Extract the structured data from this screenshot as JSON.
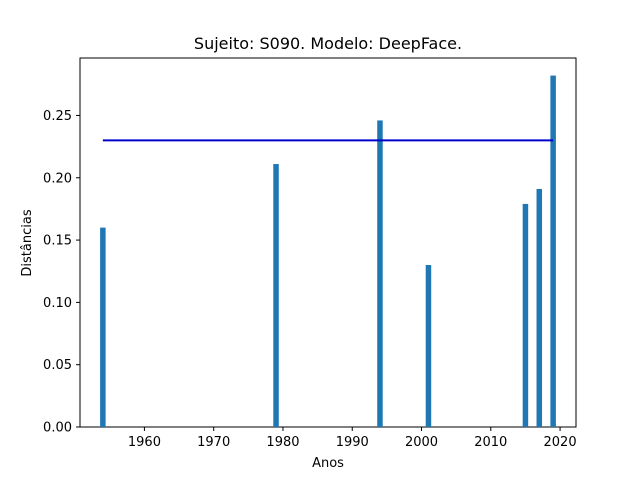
{
  "chart_data": {
    "type": "bar",
    "title": "Sujeito: S090. Modelo: DeepFace.",
    "xlabel": "Anos",
    "ylabel": "Distâncias",
    "x": [
      1954,
      1979,
      1994,
      2001,
      2015,
      2017,
      2019
    ],
    "values": [
      0.16,
      0.211,
      0.246,
      0.13,
      0.179,
      0.191,
      0.282
    ],
    "bar_color": "#1f77b4",
    "xlim": [
      1950.7,
      2022.3
    ],
    "ylim": [
      0,
      0.2961
    ],
    "xticks": [
      1960,
      1970,
      1980,
      1990,
      2000,
      2010,
      2020
    ],
    "yticks": [
      0.0,
      0.05,
      0.1,
      0.15,
      0.2,
      0.25
    ],
    "ytick_labels": [
      "0.00",
      "0.05",
      "0.10",
      "0.15",
      "0.20",
      "0.25"
    ],
    "threshold": {
      "y": 0.23,
      "x_start": 1954,
      "x_end": 2019,
      "color": "#0000cc"
    },
    "grid": false,
    "legend": "none"
  }
}
